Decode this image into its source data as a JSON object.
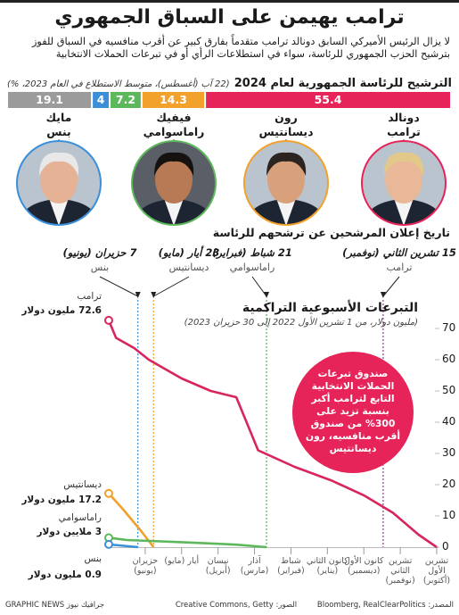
{
  "header": {
    "title": "ترامب يهيمن على السباق الجمهوري",
    "subtitle": "لا يزال الرئيس الأميركي السابق دونالد ترامب متقدماً بفارق كبير عن أقرب منافسيه في السباق للفوز بترشيح الحزب الجمهوري للرئاسة، سواء في استطلاعات الرأي أو في تبرعات الحملات الانتخابية"
  },
  "candidates": [
    {
      "first": "دونالد",
      "last": "ترامب"
    },
    {
      "first": "رون",
      "last": "ديسانتيس"
    },
    {
      "first": "فيفيك",
      "last": "راماسوامي"
    },
    {
      "first": "مايك",
      "last": "بنس"
    }
  ],
  "announcements": {
    "title": "تاريخ إعلان المرشحين عن ترشحهم للرئاسة",
    "items": [
      {
        "date": "15 تشرين الثاني (نوفمبر)",
        "name": "ترامب",
        "x": 1.47,
        "color": "#8e3b8f"
      },
      {
        "date": "21 شباط (فبراير)",
        "name": "راماسوامي",
        "x": 4.67,
        "color": "#4fae50"
      },
      {
        "date": "23 أيار (مايو)",
        "name": "ديسانتيس",
        "x": 7.77,
        "color": "#f0a12b"
      },
      {
        "date": "7 حزيران (يونيو)",
        "name": "بنس",
        "x": 8.2,
        "color": "#2f8fd6"
      }
    ]
  },
  "chart_data": [
    {
      "type": "stacked-bar",
      "orientation": "horizontal",
      "title": "الترشيح للرئاسة الجمهورية لعام 2024",
      "subtitle": "(22 آب (أغسطس)، متوسط الاستطلاع في العام 2023، %)",
      "values": [
        55.4,
        14.3,
        7.2,
        4,
        19.1
      ],
      "colors": [
        "#e6245a",
        "#f2a12b",
        "#5db85c",
        "#3b8fd9",
        "#9b9b9b"
      ],
      "xlim": [
        0,
        100
      ]
    },
    {
      "type": "line",
      "title": "التبرعات الأسبوعية التراكمية",
      "subtitle": "(مليون دولار، من 1 تشرين الأول 2022 إلى 30 حزيران 2023)",
      "xlim": [
        0,
        9
      ],
      "x_reversed": true,
      "xticks": [
        {
          "value": 0,
          "label": "تشرين الأول (أكتوبر)"
        },
        {
          "value": 1,
          "label": "تشرين الثاني (نوفمبر)"
        },
        {
          "value": 2,
          "label": "كانون الأول (ديسمبر)"
        },
        {
          "value": 3,
          "label": "كانون الثاني (يناير)"
        },
        {
          "value": 4,
          "label": "شباط (فبراير)"
        },
        {
          "value": 5,
          "label": "آذار (مارس)"
        },
        {
          "value": 6,
          "label": "نيسان (أبريل)"
        },
        {
          "value": 7,
          "label": "أيار (مايو)"
        },
        {
          "value": 8,
          "label": "حزيران (يونيو)"
        }
      ],
      "ylim": [
        0,
        75
      ],
      "yticks": [
        0,
        10,
        20,
        30,
        40,
        50,
        60,
        70
      ],
      "grid": false,
      "annotation": "صندوق تبرعات الحملات الانتخابية التابع لترامب أكبر بنسبة تزيد على 300% من صندوق أقرب منافسيه، رون ديسانتيس",
      "series": [
        {
          "name": "ترامب",
          "color": "#d8255c",
          "x": [
            0,
            0.5,
            1.2,
            2,
            2.9,
            3.9,
            4.9,
            5.5,
            6.2,
            7,
            7.9,
            8.3,
            8.8,
            9
          ],
          "values": [
            0,
            4,
            11,
            16.6,
            21.4,
            25.7,
            31,
            48,
            50,
            54,
            60,
            63.7,
            67,
            72.6
          ],
          "value_labels": [
            null,
            null,
            null,
            null,
            null,
            null,
            null,
            null,
            null,
            null,
            null,
            null,
            null,
            "72.6 مليون دولار"
          ]
        },
        {
          "name": "ديسانتيس",
          "color": "#f0a12b",
          "x": [
            7.77,
            8.1,
            8.6,
            9
          ],
          "values": [
            0,
            5,
            12,
            17.2
          ],
          "value_labels": [
            null,
            null,
            null,
            "17.2 مليون دولار"
          ]
        },
        {
          "name": "راماسوامي",
          "color": "#5db85c",
          "x": [
            4.67,
            5.5,
            7,
            8.5,
            9
          ],
          "values": [
            0,
            0.8,
            1.6,
            2.3,
            3
          ],
          "value_labels": [
            null,
            null,
            null,
            null,
            "3 ملايين دولار"
          ]
        },
        {
          "name": "بنس",
          "color": "#3b8fd9",
          "x": [
            8.2,
            9
          ],
          "values": [
            0,
            0.9
          ],
          "value_labels": [
            null,
            "0.9 مليون دولار"
          ]
        }
      ]
    }
  ],
  "footer": {
    "source": "المصدر: Bloomberg, RealClearPolitics",
    "photos": "الصور: Creative Commons, Getty",
    "credit": "جرافيك نيوز GRAPHIC NEWS"
  }
}
